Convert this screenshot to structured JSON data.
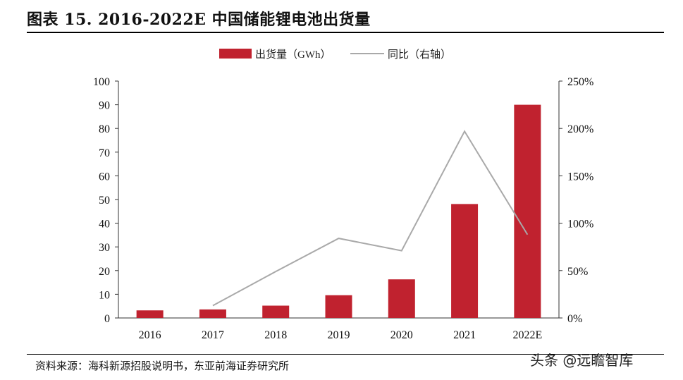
{
  "title": "图表 15. 2016-2022E 中国储能锂电池出货量",
  "source": "资料来源：海科新源招股说明书，东亚前海证券研究所",
  "watermark": "头条 @远瞻智库",
  "colors": {
    "bar": "#C0222F",
    "line": "#A9A9A9"
  },
  "chart_data": {
    "type": "bar",
    "categories": [
      "2016",
      "2017",
      "2018",
      "2019",
      "2020",
      "2021",
      "2022E"
    ],
    "series": [
      {
        "name": "出货量（GWh）",
        "type": "bar",
        "axis": "left",
        "values": [
          3.2,
          3.6,
          5.2,
          9.6,
          16.3,
          48.1,
          90.0
        ]
      },
      {
        "name": "同比（右轴）",
        "type": "line",
        "axis": "right",
        "values": [
          null,
          13,
          49,
          84,
          71,
          197,
          88
        ]
      }
    ],
    "y_left": {
      "min": 0,
      "max": 100,
      "ticks": [
        0,
        10,
        20,
        30,
        40,
        50,
        60,
        70,
        80,
        90,
        100
      ]
    },
    "y_right": {
      "min": 0,
      "max": 250,
      "ticks": [
        "0%",
        "50%",
        "100%",
        "150%",
        "200%",
        "250%"
      ]
    },
    "legend": "top"
  }
}
